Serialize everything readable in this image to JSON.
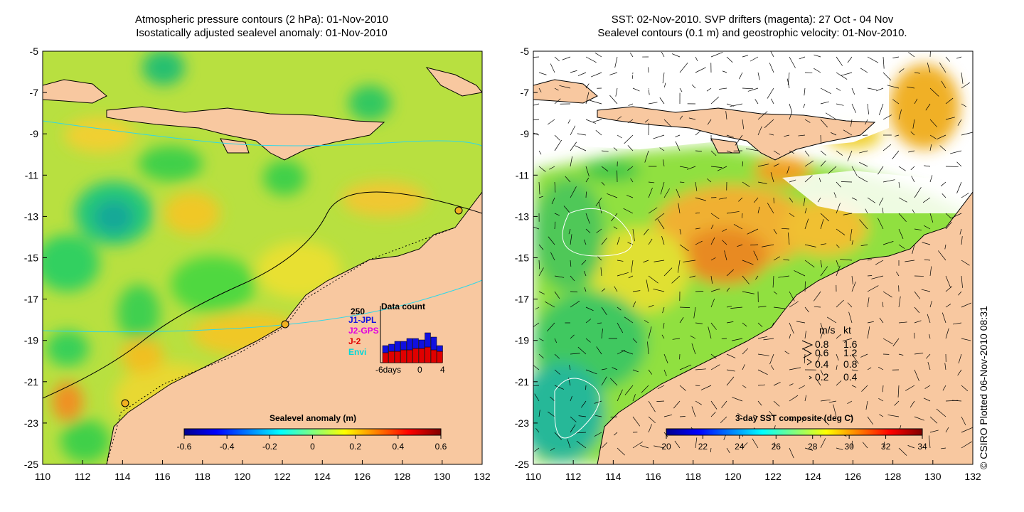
{
  "left_panel": {
    "title_line1": "Atmospheric pressure contours (2 hPa): 01-Nov-2010",
    "title_line2": "Isostatically adjusted sealevel anomaly: 01-Nov-2010",
    "colorbar": {
      "label": "Sealevel anomaly (m)",
      "ticks": [
        "-0.6",
        "-0.4",
        "-0.2",
        "0",
        "0.2",
        "0.4",
        "0.6"
      ],
      "range": [
        -0.6,
        0.6
      ],
      "colormap": "jet"
    },
    "data_count_inset": {
      "title": "Data count",
      "max_label": "250",
      "x_label": "-6days",
      "x_ticks": [
        "0",
        "4"
      ],
      "legend": [
        {
          "name": "J1-JPL",
          "color": "#1010e0"
        },
        {
          "name": "J2-GPS",
          "color": "#e000e0"
        },
        {
          "name": "J-2",
          "color": "#e00000"
        },
        {
          "name": "Envi",
          "color": "#00d8d8"
        }
      ]
    }
  },
  "right_panel": {
    "title_line1": "SST: 02-Nov-2010. SVP drifters (magenta): 27 Oct - 04 Nov",
    "title_line2": "Sealevel contours (0.1 m) and geostrophic velocity: 01-Nov-2010.",
    "colorbar": {
      "label": "3-day SST composite (deg C)",
      "ticks": [
        "20",
        "22",
        "24",
        "26",
        "28",
        "30",
        "32",
        "34"
      ],
      "range": [
        20,
        34
      ],
      "colormap": "jet"
    },
    "velocity_legend": {
      "header_ms": "m/s",
      "header_kt": "kt",
      "rows": [
        {
          "ms": "0.8",
          "kt": "1.6"
        },
        {
          "ms": "0.6",
          "kt": "1.2"
        },
        {
          "ms": "0.4",
          "kt": "0.8"
        },
        {
          "ms": "0.2",
          "kt": "0.4"
        }
      ]
    }
  },
  "axes": {
    "x_ticks": [
      "110",
      "112",
      "114",
      "116",
      "118",
      "120",
      "122",
      "124",
      "126",
      "128",
      "130",
      "132"
    ],
    "y_ticks": [
      "-5",
      "-7",
      "-9",
      "-11",
      "-13",
      "-15",
      "-17",
      "-19",
      "-21",
      "-23",
      "-25"
    ]
  },
  "credit": "© CSIRO Plotted 06-Nov-2010 08:31",
  "colors": {
    "land": "#f8c8a0",
    "sea_base": "#c8e830",
    "contour_cyan": "#30d8e8"
  }
}
